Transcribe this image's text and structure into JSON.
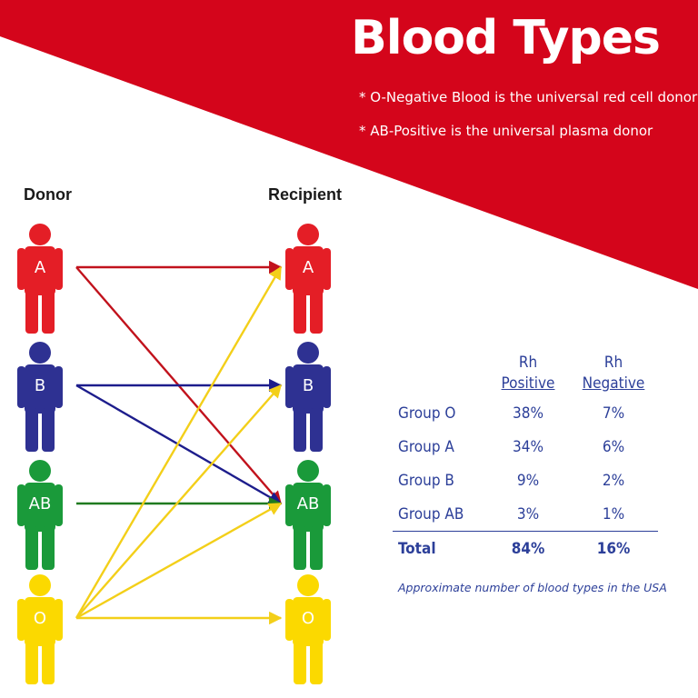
{
  "title": "Blood Types",
  "notes": [
    "* O-Negative Blood is the universal red cell donor",
    "* AB-Positive is the universal plasma donor"
  ],
  "diagram": {
    "donor_heading": "Donor",
    "recipient_heading": "Recipient",
    "people": [
      {
        "type": "A",
        "color": "#e41e26"
      },
      {
        "type": "B",
        "color": "#2e3192"
      },
      {
        "type": "AB",
        "color": "#1a9a3a"
      },
      {
        "type": "O",
        "color": "#fbd900"
      }
    ],
    "connections": [
      {
        "from": "A",
        "to": "A"
      },
      {
        "from": "A",
        "to": "AB"
      },
      {
        "from": "B",
        "to": "B"
      },
      {
        "from": "B",
        "to": "AB"
      },
      {
        "from": "AB",
        "to": "AB"
      },
      {
        "from": "O",
        "to": "A"
      },
      {
        "from": "O",
        "to": "B"
      },
      {
        "from": "O",
        "to": "AB"
      },
      {
        "from": "O",
        "to": "O"
      }
    ]
  },
  "colors": {
    "banner": "#d4051b",
    "table_text": "#2c3f99",
    "arrow_A": "#c1121c",
    "arrow_B": "#1d1d8c",
    "arrow_AB": "#1f7a1f",
    "arrow_O": "#f3cf19"
  },
  "table": {
    "headers": {
      "pos": [
        "Rh",
        "Positive"
      ],
      "neg": [
        "Rh",
        "Negative"
      ]
    },
    "rows": [
      {
        "label": "Group O",
        "pos": "38%",
        "neg": "7%"
      },
      {
        "label": "Group A",
        "pos": "34%",
        "neg": "6%"
      },
      {
        "label": "Group B",
        "pos": "9%",
        "neg": "2%"
      },
      {
        "label": "Group AB",
        "pos": "3%",
        "neg": "1%"
      }
    ],
    "total": {
      "label": "Total",
      "pos": "84%",
      "neg": "16%"
    },
    "caption": "Approximate number of blood types in the USA"
  }
}
